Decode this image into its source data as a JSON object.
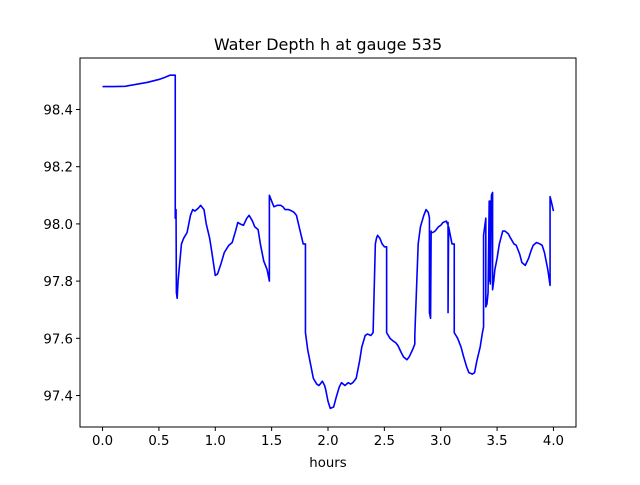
{
  "chart_data": {
    "type": "line",
    "title": "Water Depth h at gauge 535",
    "xlabel": "hours",
    "ylabel": "",
    "xlim": [
      -0.2,
      4.2
    ],
    "ylim": [
      97.29,
      98.58
    ],
    "x_ticks": [
      0.0,
      0.5,
      1.0,
      1.5,
      2.0,
      2.5,
      3.0,
      3.5,
      4.0
    ],
    "x_tick_labels": [
      "0.0",
      "0.5",
      "1.0",
      "1.5",
      "2.0",
      "2.5",
      "3.0",
      "3.5",
      "4.0"
    ],
    "y_ticks": [
      97.4,
      97.6,
      97.8,
      98.0,
      98.2,
      98.4
    ],
    "y_tick_labels": [
      "97.4",
      "97.6",
      "97.8",
      "98.0",
      "98.2",
      "98.4"
    ],
    "grid": false,
    "legend": "none",
    "series": [
      {
        "color": "#0000ff",
        "x": [
          0.0,
          0.1,
          0.2,
          0.3,
          0.4,
          0.5,
          0.55,
          0.6,
          0.645,
          0.645,
          0.652,
          0.655,
          0.662,
          0.67,
          0.7,
          0.72,
          0.75,
          0.78,
          0.8,
          0.82,
          0.85,
          0.87,
          0.9,
          0.92,
          0.95,
          0.97,
          1.0,
          1.02,
          1.05,
          1.08,
          1.12,
          1.15,
          1.18,
          1.2,
          1.22,
          1.25,
          1.28,
          1.3,
          1.33,
          1.35,
          1.38,
          1.4,
          1.43,
          1.46,
          1.48,
          1.48,
          1.5,
          1.52,
          1.55,
          1.58,
          1.6,
          1.62,
          1.65,
          1.68,
          1.7,
          1.72,
          1.75,
          1.78,
          1.8,
          1.8,
          1.82,
          1.85,
          1.87,
          1.9,
          1.92,
          1.93,
          1.95,
          1.97,
          1.98,
          2.0,
          2.02,
          2.05,
          2.07,
          2.1,
          2.12,
          2.15,
          2.18,
          2.2,
          2.22,
          2.25,
          2.28,
          2.3,
          2.33,
          2.35,
          2.38,
          2.4,
          2.42,
          2.43,
          2.44,
          2.44,
          2.46,
          2.48,
          2.5,
          2.52,
          2.52,
          2.55,
          2.58,
          2.6,
          2.62,
          2.65,
          2.67,
          2.7,
          2.72,
          2.75,
          2.77,
          2.77,
          2.8,
          2.82,
          2.85,
          2.87,
          2.89,
          2.9,
          2.9,
          2.91,
          2.915,
          2.915,
          2.93,
          2.95,
          2.98,
          3.0,
          3.02,
          3.05,
          3.06,
          3.065,
          3.065,
          3.07,
          3.08,
          3.1,
          3.12,
          3.12,
          3.15,
          3.18,
          3.2,
          3.23,
          3.25,
          3.28,
          3.3,
          3.32,
          3.35,
          3.37,
          3.38,
          3.38,
          3.39,
          3.4,
          3.4,
          3.41,
          3.42,
          3.43,
          3.43,
          3.44,
          3.44,
          3.45,
          3.46,
          3.46,
          3.47,
          3.48,
          3.5,
          3.52,
          3.55,
          3.57,
          3.6,
          3.62,
          3.65,
          3.67,
          3.7,
          3.72,
          3.75,
          3.78,
          3.8,
          3.82,
          3.85,
          3.88,
          3.9,
          3.92,
          3.95,
          3.97,
          3.97,
          3.98,
          4.0
        ],
        "y": [
          98.48,
          98.48,
          98.481,
          98.488,
          98.495,
          98.505,
          98.512,
          98.52,
          98.52,
          98.02,
          98.05,
          97.76,
          97.74,
          97.8,
          97.93,
          97.95,
          97.97,
          98.03,
          98.05,
          98.045,
          98.055,
          98.065,
          98.05,
          98.0,
          97.95,
          97.9,
          97.82,
          97.825,
          97.86,
          97.9,
          97.925,
          97.935,
          97.975,
          98.005,
          98.0,
          97.995,
          98.02,
          98.03,
          98.01,
          97.99,
          97.98,
          97.93,
          97.87,
          97.84,
          97.8,
          98.1,
          98.08,
          98.06,
          98.065,
          98.065,
          98.06,
          98.05,
          98.05,
          98.045,
          98.04,
          98.03,
          97.98,
          97.93,
          97.93,
          97.62,
          97.56,
          97.5,
          97.46,
          97.44,
          97.435,
          97.44,
          97.45,
          97.435,
          97.42,
          97.38,
          97.355,
          97.36,
          97.39,
          97.43,
          97.445,
          97.435,
          97.445,
          97.44,
          97.445,
          97.46,
          97.52,
          97.57,
          97.61,
          97.615,
          97.61,
          97.62,
          97.93,
          97.95,
          97.96,
          97.96,
          97.95,
          97.93,
          97.92,
          97.92,
          97.62,
          97.6,
          97.59,
          97.585,
          97.575,
          97.55,
          97.535,
          97.525,
          97.535,
          97.56,
          97.58,
          97.61,
          97.93,
          97.99,
          98.03,
          98.05,
          98.04,
          98.02,
          97.69,
          97.67,
          97.975,
          97.97,
          97.97,
          97.975,
          97.99,
          97.995,
          98.005,
          98.01,
          98.0,
          98.005,
          97.69,
          97.99,
          97.97,
          97.93,
          97.93,
          97.62,
          97.6,
          97.57,
          97.54,
          97.5,
          97.48,
          97.475,
          97.48,
          97.52,
          97.57,
          97.62,
          97.64,
          97.96,
          97.99,
          98.02,
          97.71,
          97.72,
          97.76,
          98.08,
          97.8,
          98.08,
          97.79,
          98.1,
          98.11,
          97.77,
          97.8,
          97.84,
          97.88,
          97.93,
          97.975,
          97.975,
          97.965,
          97.95,
          97.93,
          97.925,
          97.895,
          97.865,
          97.855,
          97.88,
          97.905,
          97.925,
          97.935,
          97.93,
          97.925,
          97.9,
          97.84,
          97.785,
          98.095,
          98.08,
          98.045
        ]
      }
    ]
  }
}
